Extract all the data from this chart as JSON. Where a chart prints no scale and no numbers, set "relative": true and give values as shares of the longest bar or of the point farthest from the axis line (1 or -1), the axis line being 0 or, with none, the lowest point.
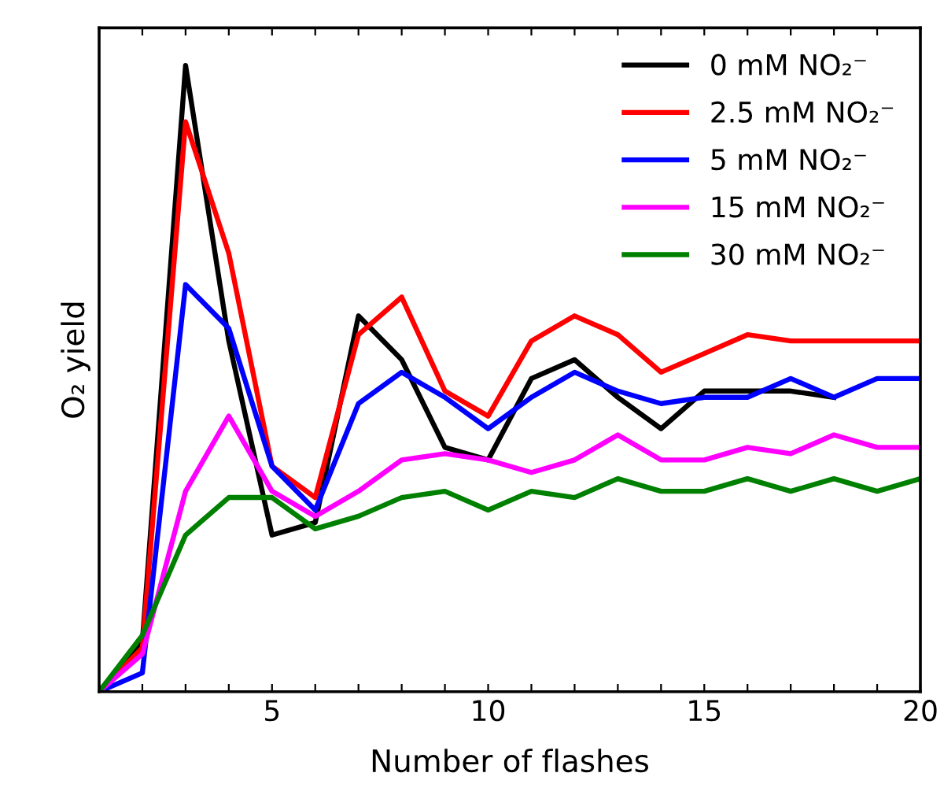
{
  "chart_data": {
    "type": "line",
    "relative": true,
    "xlabel": "Number of flashes",
    "ylabel": "O₂ yield",
    "x": [
      1,
      2,
      3,
      4,
      5,
      6,
      7,
      8,
      9,
      10,
      11,
      12,
      13,
      14,
      15,
      16,
      17,
      18,
      19,
      20
    ],
    "xlim": [
      1,
      20
    ],
    "xticks": [
      {
        "value": 1,
        "label": null
      },
      {
        "value": 2,
        "label": null
      },
      {
        "value": 3,
        "label": null
      },
      {
        "value": 4,
        "label": null
      },
      5,
      {
        "value": 6,
        "label": null
      },
      {
        "value": 7,
        "label": null
      },
      {
        "value": 8,
        "label": null
      },
      {
        "value": 9,
        "label": null
      },
      10,
      {
        "value": 11,
        "label": null
      },
      {
        "value": 12,
        "label": null
      },
      {
        "value": 13,
        "label": null
      },
      {
        "value": 14,
        "label": null
      },
      15,
      {
        "value": 16,
        "label": null
      },
      {
        "value": 17,
        "label": null
      },
      {
        "value": 18,
        "label": null
      },
      {
        "value": 19,
        "label": null
      },
      20
    ],
    "tick_labels": "x",
    "grid": false,
    "legend": "top right",
    "marker": "none",
    "line_style": "solid",
    "series": [
      {
        "name": "0 mM NO₂⁻",
        "color": "#000000",
        "values": [
          0,
          0.08,
          1,
          0.56,
          0.25,
          0.27,
          0.6,
          0.53,
          0.39,
          0.37,
          0.5,
          0.53,
          0.47,
          0.42,
          0.48,
          0.48,
          0.48,
          0.47,
          null,
          null
        ]
      },
      {
        "name": "2.5 mM NO₂⁻",
        "color": "#ff0000",
        "values": [
          0,
          0.07,
          0.91,
          0.7,
          0.36,
          0.31,
          0.57,
          0.63,
          0.48,
          0.44,
          0.56,
          0.6,
          0.57,
          0.51,
          0.54,
          0.57,
          0.56,
          0.56,
          0.56,
          0.56
        ]
      },
      {
        "name": "5 mM NO₂⁻",
        "color": "#0000ff",
        "values": [
          0,
          0.03,
          0.65,
          0.58,
          0.36,
          0.29,
          0.46,
          0.51,
          0.47,
          0.42,
          0.47,
          0.51,
          0.48,
          0.46,
          0.47,
          0.47,
          0.5,
          0.47,
          0.5,
          0.5
        ]
      },
      {
        "name": "15 mM NO₂⁻",
        "color": "#ff00ff",
        "values": [
          0,
          0.06,
          0.32,
          0.44,
          0.32,
          0.28,
          0.32,
          0.37,
          0.38,
          0.37,
          0.35,
          0.37,
          0.41,
          0.37,
          0.37,
          0.39,
          0.38,
          0.41,
          0.39,
          0.39
        ]
      },
      {
        "name": "30 mM NO₂⁻",
        "color": "#008000",
        "values": [
          0,
          0.09,
          0.25,
          0.31,
          0.31,
          0.26,
          0.28,
          0.31,
          0.32,
          0.29,
          0.32,
          0.31,
          0.34,
          0.32,
          0.32,
          0.34,
          0.32,
          0.34,
          0.32,
          0.34
        ]
      }
    ]
  }
}
